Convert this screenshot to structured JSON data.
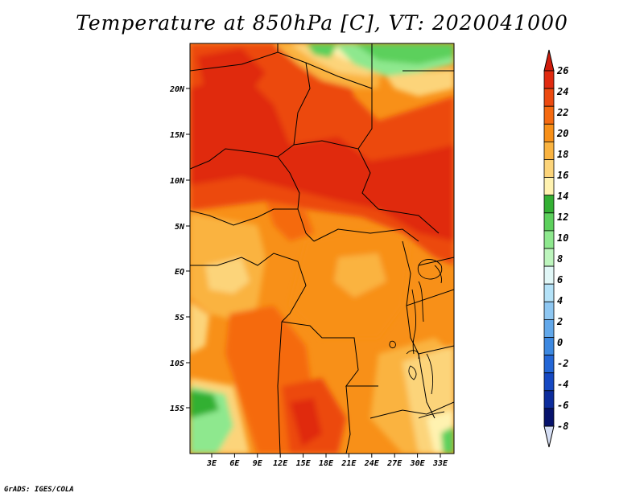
{
  "title": "Temperature at 850hPa [C], VT: 2020041000",
  "credit": "GrADS: IGES/COLA",
  "lat_ticks": [
    "20N",
    "15N",
    "10N",
    "5N",
    "EQ",
    "5S",
    "10S",
    "15S"
  ],
  "lon_ticks": [
    "3E",
    "6E",
    "9E",
    "12E",
    "15E",
    "18E",
    "21E",
    "24E",
    "27E",
    "30E",
    "33E"
  ],
  "colorbar": {
    "labels": [
      "26",
      "24",
      "22",
      "20",
      "18",
      "16",
      "14",
      "12",
      "10",
      "8",
      "6",
      "4",
      "2",
      "0",
      "-2",
      "-4",
      "-6",
      "-8"
    ],
    "colors": [
      "#e02a10",
      "#ec4a10",
      "#f56a10",
      "#f89018",
      "#fab340",
      "#fcd47a",
      "#fff2b0",
      "#33b033",
      "#5cd05c",
      "#8ee88e",
      "#bdf5bd",
      "#e1f7f7",
      "#b4e2f8",
      "#8ec7f2",
      "#62a8ea",
      "#3c88e0",
      "#2366d6",
      "#1548c2",
      "#0c2c9c",
      "#06126c"
    ],
    "over_color": "#d01c0c",
    "under_color": "#d6dff5"
  }
}
